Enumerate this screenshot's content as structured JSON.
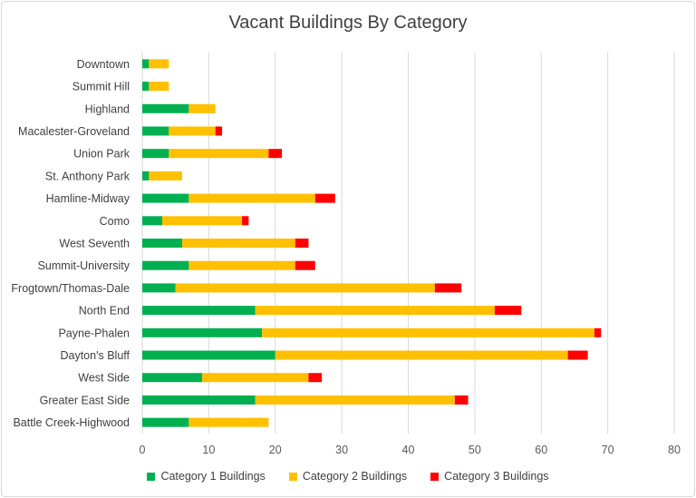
{
  "chart_data": {
    "type": "bar",
    "orientation": "horizontal",
    "stacked": true,
    "title": "Vacant Buildings By Category",
    "xlabel": "",
    "ylabel": "",
    "xlim": [
      0,
      80
    ],
    "xticks": [
      0,
      10,
      20,
      30,
      40,
      50,
      60,
      70,
      80
    ],
    "grid": true,
    "legend_position": "bottom",
    "categories": [
      "Downtown",
      "Summit Hill",
      "Highland",
      "Macalester-Groveland",
      "Union Park",
      "St. Anthony Park",
      "Hamline-Midway",
      "Como",
      "West Seventh",
      "Summit-University",
      "Frogtown/Thomas-Dale",
      "North End",
      "Payne-Phalen",
      "Dayton's Bluff",
      "West Side",
      "Greater East Side",
      "Battle Creek-Highwood"
    ],
    "series": [
      {
        "name": "Category 1 Buildings",
        "color": "#00b050",
        "values": [
          1,
          1,
          7,
          4,
          4,
          1,
          7,
          3,
          6,
          7,
          5,
          17,
          18,
          20,
          9,
          17,
          7
        ]
      },
      {
        "name": "Category 2 Buildings",
        "color": "#ffc000",
        "values": [
          3,
          3,
          4,
          7,
          15,
          5,
          19,
          12,
          17,
          16,
          39,
          36,
          50,
          44,
          16,
          30,
          12
        ]
      },
      {
        "name": "Category 3 Buildings",
        "color": "#ff0000",
        "values": [
          0,
          0,
          0,
          1,
          2,
          0,
          3,
          1,
          2,
          3,
          4,
          4,
          1,
          3,
          2,
          2,
          0
        ]
      }
    ]
  }
}
